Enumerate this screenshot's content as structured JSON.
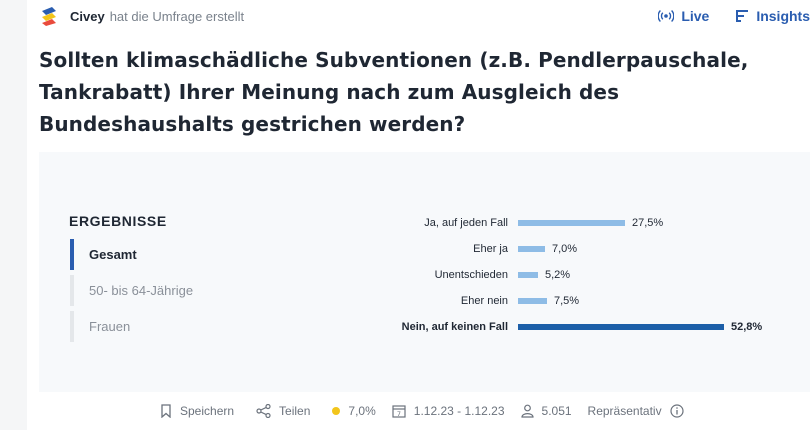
{
  "header": {
    "brand": "Civey",
    "created_text": "hat die Umfrage erstellt",
    "live_label": "Live",
    "insights_label": "Insights"
  },
  "question": "Sollten klimaschädliche Subventionen (z.B. Pendlerpauschale, Tankrabatt) Ihrer Meinung nach zum Ausgleich des Bundeshaushalts gestrichen werden?",
  "results": {
    "title": "ERGEBNISSE",
    "filters": [
      {
        "label": "Gesamt",
        "active": true
      },
      {
        "label": "50- bis 64-Jährige",
        "active": false
      },
      {
        "label": "Frauen",
        "active": false
      }
    ],
    "answers": [
      {
        "label": "Ja, auf jeden Fall",
        "value": 27.5,
        "display": "27,5%",
        "highlight": false
      },
      {
        "label": "Eher ja",
        "value": 7.0,
        "display": "7,0%",
        "highlight": false
      },
      {
        "label": "Unentschieden",
        "value": 5.2,
        "display": "5,2%",
        "highlight": false
      },
      {
        "label": "Eher nein",
        "value": 7.5,
        "display": "7,5%",
        "highlight": false
      },
      {
        "label": "Nein, auf keinen Fall",
        "value": 52.8,
        "display": "52,8%",
        "highlight": true
      }
    ]
  },
  "footer": {
    "save_label": "Speichern",
    "share_label": "Teilen",
    "error_margin": "7,0%",
    "date_range": "1.12.23 - 1.12.23",
    "participants": "5.051",
    "representative_label": "Repräsentativ"
  },
  "colors": {
    "accent": "#2a5db0",
    "bar_light": "#8ebce6",
    "bar_strong": "#1c5fa8",
    "dot": "#f2c51b"
  },
  "icons": [
    "civey-logo",
    "live-icon",
    "insights-icon",
    "bookmark-icon",
    "share-icon",
    "calendar-icon",
    "user-icon",
    "info-icon"
  ]
}
